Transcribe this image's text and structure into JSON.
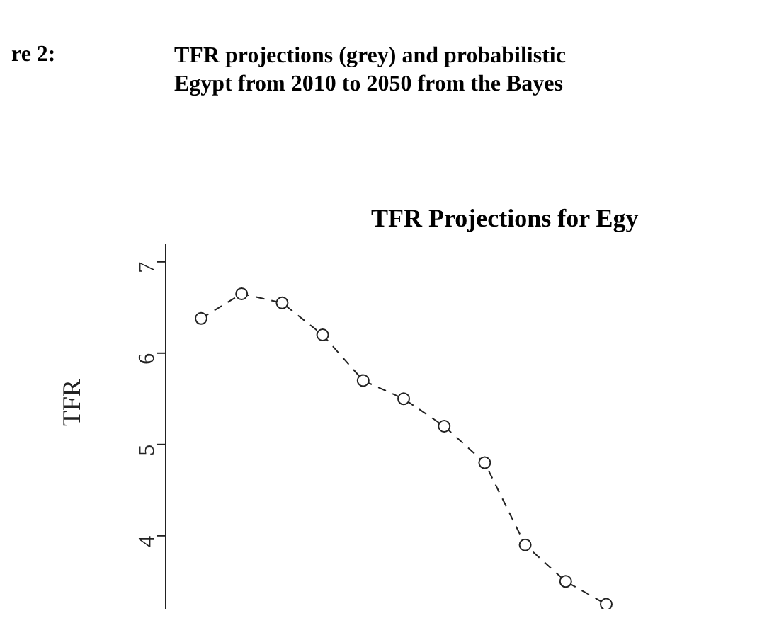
{
  "chart_data": {
    "type": "line",
    "title": "TFR Projections for Egy",
    "ylabel": "TFR",
    "annotations": [
      "re 2:",
      "TFR projections (grey) and probabilistic",
      "Egypt from 2010 to 2050 from the Bayes"
    ],
    "categories": [
      null,
      null,
      null,
      null,
      null,
      null,
      null,
      null,
      null,
      null,
      null
    ],
    "series": [
      {
        "color": "#222222",
        "values": [
          6.38,
          6.65,
          6.55,
          6.2,
          5.7,
          5.5,
          5.2,
          4.8,
          3.9,
          3.5,
          3.25
        ]
      }
    ],
    "ylim": [
      3.2,
      7.2
    ],
    "yticks": [
      4,
      5,
      6,
      7
    ],
    "tick_labels": "y",
    "marker": "circle",
    "line_style": "dashed"
  }
}
